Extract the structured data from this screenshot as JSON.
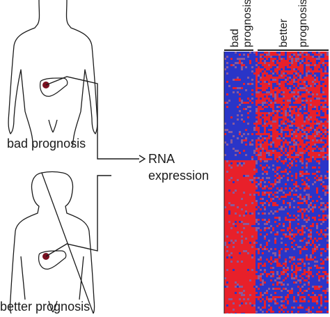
{
  "figure": {
    "patient_top_label": "bad prognosis",
    "patient_bottom_label": "better prognosis",
    "rna_line1": "RNA",
    "rna_line2": "expression",
    "group_bad_line1": "bad",
    "group_bad_line2": "prognosis",
    "group_better_line1": "better",
    "group_better_line2": "prognosis"
  },
  "colors": {
    "line": "#1a1a1a",
    "organ_dot": "#7a1020",
    "heat_high": "#e8202a",
    "heat_low": "#2a35c8",
    "heat_mid": "#8a5a9a"
  }
}
